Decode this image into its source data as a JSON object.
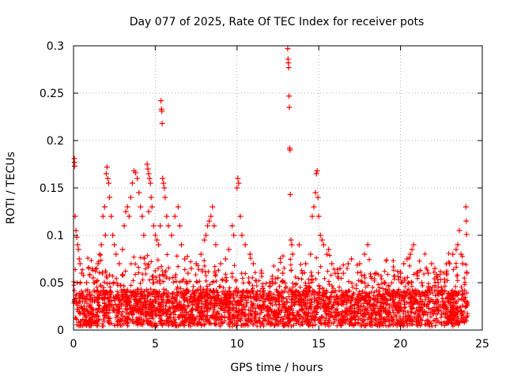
{
  "chart_data": {
    "type": "scatter",
    "title": "Day 077 of 2025, Rate Of TEC Index for receiver pots",
    "xlabel": "GPS time / hours",
    "ylabel": "ROTI / TECUs",
    "xlim": [
      0,
      25
    ],
    "ylim": [
      0,
      0.3
    ],
    "xticks": [
      0,
      5,
      10,
      15,
      20,
      25
    ],
    "xtick_labels": [
      "0",
      "5",
      "10",
      "15",
      "20",
      "25"
    ],
    "yticks": [
      0,
      0.05,
      0.1,
      0.15,
      0.2,
      0.25,
      0.3
    ],
    "ytick_labels": [
      "0",
      "0.05",
      "0.1",
      "0.15",
      "0.2",
      "0.25",
      "0.3"
    ],
    "grid": true,
    "marker": "+",
    "marker_color": "#ff0000",
    "series": [
      {
        "name": "ROTI",
        "points": [
          [
            0.05,
            0.181
          ],
          [
            0.06,
            0.177
          ],
          [
            0.07,
            0.173
          ],
          [
            0.1,
            0.12
          ],
          [
            0.15,
            0.105
          ],
          [
            0.2,
            0.098
          ],
          [
            0.25,
            0.09
          ],
          [
            0.3,
            0.085
          ],
          [
            0.35,
            0.075
          ],
          [
            0.4,
            0.07
          ],
          [
            0.5,
            0.06
          ],
          [
            0.8,
            0.05
          ],
          [
            1.0,
            0.04
          ],
          [
            1.2,
            0.055
          ],
          [
            1.4,
            0.065
          ],
          [
            1.5,
            0.07
          ],
          [
            1.6,
            0.08
          ],
          [
            1.7,
            0.09
          ],
          [
            1.8,
            0.12
          ],
          [
            1.9,
            0.13
          ],
          [
            1.95,
            0.1
          ],
          [
            2.0,
            0.165
          ],
          [
            2.05,
            0.172
          ],
          [
            2.1,
            0.16
          ],
          [
            2.15,
            0.155
          ],
          [
            2.2,
            0.14
          ],
          [
            2.3,
            0.12
          ],
          [
            2.4,
            0.1
          ],
          [
            2.5,
            0.09
          ],
          [
            2.6,
            0.08
          ],
          [
            2.8,
            0.07
          ],
          [
            3.0,
            0.085
          ],
          [
            3.1,
            0.11
          ],
          [
            3.2,
            0.125
          ],
          [
            3.3,
            0.13
          ],
          [
            3.4,
            0.12
          ],
          [
            3.5,
            0.14
          ],
          [
            3.6,
            0.155
          ],
          [
            3.7,
            0.168
          ],
          [
            3.8,
            0.166
          ],
          [
            3.9,
            0.16
          ],
          [
            4.0,
            0.145
          ],
          [
            4.1,
            0.13
          ],
          [
            4.2,
            0.12
          ],
          [
            4.3,
            0.1
          ],
          [
            4.5,
            0.175
          ],
          [
            4.55,
            0.17
          ],
          [
            4.6,
            0.165
          ],
          [
            4.65,
            0.16
          ],
          [
            4.7,
            0.155
          ],
          [
            4.75,
            0.14
          ],
          [
            4.8,
            0.13
          ],
          [
            4.6,
            0.125
          ],
          [
            4.9,
            0.11
          ],
          [
            5.0,
            0.1
          ],
          [
            5.1,
            0.095
          ],
          [
            5.2,
            0.09
          ],
          [
            5.3,
            0.11
          ],
          [
            5.35,
            0.242
          ],
          [
            5.38,
            0.233
          ],
          [
            5.4,
            0.231
          ],
          [
            5.42,
            0.218
          ],
          [
            5.45,
            0.16
          ],
          [
            5.5,
            0.155
          ],
          [
            5.55,
            0.15
          ],
          [
            5.6,
            0.14
          ],
          [
            5.7,
            0.12
          ],
          [
            5.8,
            0.11
          ],
          [
            6.0,
            0.1
          ],
          [
            6.2,
            0.12
          ],
          [
            6.4,
            0.13
          ],
          [
            6.5,
            0.11
          ],
          [
            6.6,
            0.09
          ],
          [
            6.8,
            0.075
          ],
          [
            7.0,
            0.06
          ],
          [
            7.2,
            0.065
          ],
          [
            7.5,
            0.07
          ],
          [
            7.8,
            0.08
          ],
          [
            8.0,
            0.095
          ],
          [
            8.1,
            0.1
          ],
          [
            8.2,
            0.11
          ],
          [
            8.3,
            0.115
          ],
          [
            8.4,
            0.12
          ],
          [
            8.5,
            0.13
          ],
          [
            8.6,
            0.11
          ],
          [
            8.7,
            0.09
          ],
          [
            9.0,
            0.07
          ],
          [
            9.3,
            0.075
          ],
          [
            9.5,
            0.085
          ],
          [
            9.7,
            0.11
          ],
          [
            9.8,
            0.1
          ],
          [
            10.0,
            0.15
          ],
          [
            10.05,
            0.16
          ],
          [
            10.1,
            0.155
          ],
          [
            10.2,
            0.12
          ],
          [
            10.3,
            0.1
          ],
          [
            10.5,
            0.09
          ],
          [
            10.8,
            0.08
          ],
          [
            11.0,
            0.07
          ],
          [
            11.5,
            0.06
          ],
          [
            12.0,
            0.05
          ],
          [
            12.5,
            0.055
          ],
          [
            12.8,
            0.06
          ],
          [
            13.1,
            0.297
          ],
          [
            13.12,
            0.286
          ],
          [
            13.14,
            0.282
          ],
          [
            13.16,
            0.277
          ],
          [
            13.18,
            0.247
          ],
          [
            13.2,
            0.235
          ],
          [
            13.22,
            0.192
          ],
          [
            13.24,
            0.19
          ],
          [
            13.26,
            0.143
          ],
          [
            13.3,
            0.095
          ],
          [
            13.35,
            0.09
          ],
          [
            13.4,
            0.08
          ],
          [
            13.8,
            0.09
          ],
          [
            14.0,
            0.06
          ],
          [
            14.2,
            0.07
          ],
          [
            14.5,
            0.08
          ],
          [
            14.6,
            0.12
          ],
          [
            14.7,
            0.13
          ],
          [
            14.8,
            0.145
          ],
          [
            14.85,
            0.165
          ],
          [
            14.9,
            0.168
          ],
          [
            14.95,
            0.14
          ],
          [
            15.0,
            0.12
          ],
          [
            15.1,
            0.1
          ],
          [
            15.2,
            0.095
          ],
          [
            15.3,
            0.09
          ],
          [
            15.5,
            0.08
          ],
          [
            15.6,
            0.085
          ],
          [
            15.8,
            0.07
          ],
          [
            16.0,
            0.06
          ],
          [
            16.3,
            0.065
          ],
          [
            16.5,
            0.06
          ],
          [
            16.8,
            0.07
          ],
          [
            17.0,
            0.075
          ],
          [
            17.5,
            0.07
          ],
          [
            17.8,
            0.08
          ],
          [
            18.0,
            0.09
          ],
          [
            18.5,
            0.06
          ],
          [
            19.0,
            0.05
          ],
          [
            19.5,
            0.04
          ],
          [
            20.0,
            0.06
          ],
          [
            20.2,
            0.07
          ],
          [
            20.4,
            0.075
          ],
          [
            20.6,
            0.08
          ],
          [
            20.7,
            0.085
          ],
          [
            20.8,
            0.09
          ],
          [
            21.0,
            0.06
          ],
          [
            21.3,
            0.05
          ],
          [
            21.5,
            0.04
          ],
          [
            21.7,
            0.06
          ],
          [
            21.9,
            0.07
          ],
          [
            22.1,
            0.065
          ],
          [
            22.3,
            0.05
          ],
          [
            22.5,
            0.045
          ],
          [
            22.8,
            0.06
          ],
          [
            23.0,
            0.07
          ],
          [
            23.2,
            0.08
          ],
          [
            23.4,
            0.085
          ],
          [
            23.5,
            0.09
          ],
          [
            23.6,
            0.105
          ],
          [
            23.7,
            0.08
          ],
          [
            23.8,
            0.07
          ],
          [
            24.0,
            0.13
          ],
          [
            24.02,
            0.115
          ],
          [
            24.04,
            0.101
          ],
          [
            24.06,
            0.06
          ]
        ]
      }
    ]
  }
}
